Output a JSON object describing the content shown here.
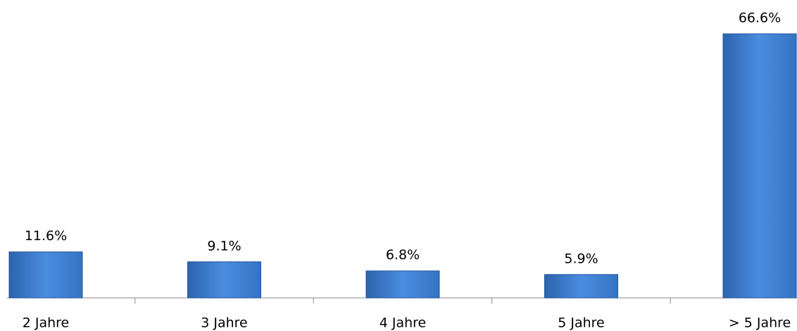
{
  "chart_data": {
    "type": "bar",
    "categories": [
      "2 Jahre",
      "3 Jahre",
      "4 Jahre",
      "5 Jahre",
      "> 5 Jahre"
    ],
    "values": [
      11.6,
      9.1,
      6.8,
      5.9,
      66.6
    ],
    "value_labels": [
      "11.6%",
      "9.1%",
      "6.8%",
      "5.9%",
      "66.6%"
    ],
    "color": "#3a78c9"
  }
}
